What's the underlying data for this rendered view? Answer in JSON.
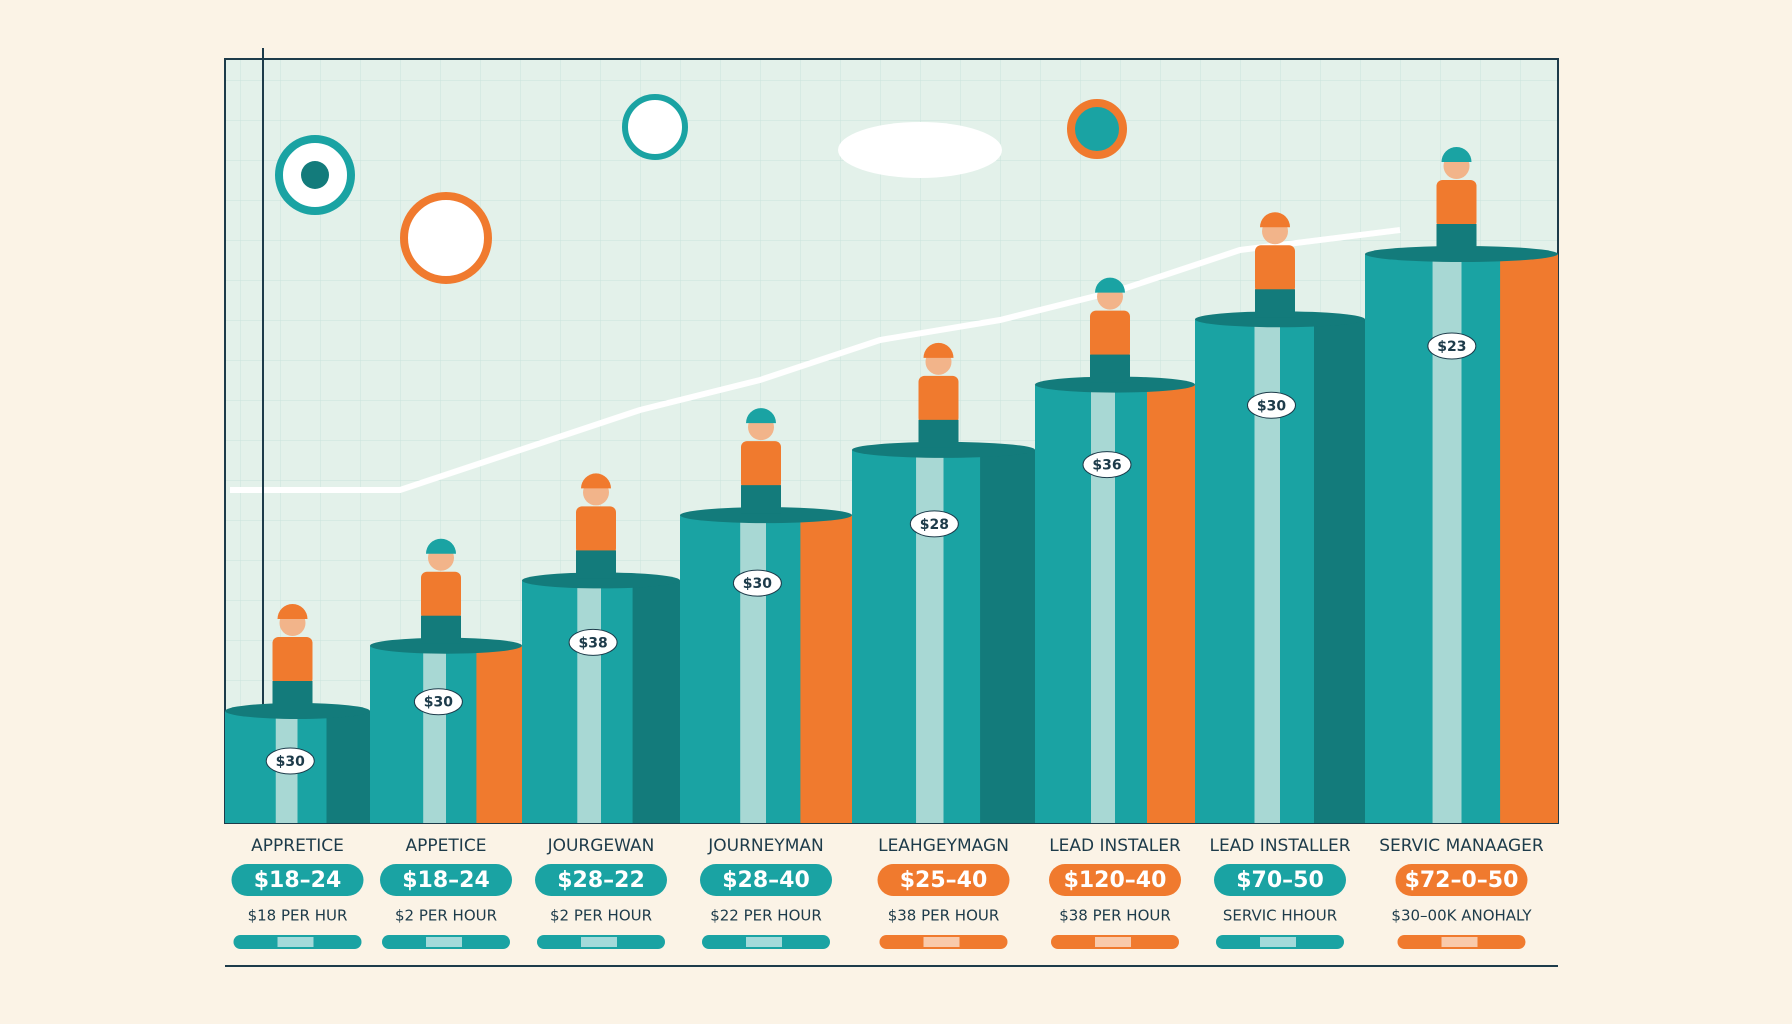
{
  "columns": [
    {
      "label": "APPRETICE",
      "range": "$18–24",
      "rate": "$18 PER HUR",
      "tag": "$30",
      "color": "#1aa3a3"
    },
    {
      "label": "APPETICE",
      "range": "$18–24",
      "rate": "$2 PER HOUR",
      "tag": "$30",
      "color": "#1aa3a3"
    },
    {
      "label": "JOURGEWAN",
      "range": "$28–22",
      "rate": "$2 PER HOUR",
      "tag": "$38",
      "color": "#1aa3a3"
    },
    {
      "label": "JOURNEYMAN",
      "range": "$28–40",
      "rate": "$22 PER HOUR",
      "tag": "$30",
      "color": "#1aa3a3"
    },
    {
      "label": "LEAHGEYMAGN",
      "range": "$25–40",
      "rate": "$38 PER HOUR",
      "tag": "$28",
      "color": "#f07a2e"
    },
    {
      "label": "LEAD INSTALER",
      "range": "$120–40",
      "rate": "$38 PER HOUR",
      "tag": "$36",
      "color": "#f07a2e"
    },
    {
      "label": "LEAD INSTALLER",
      "range": "$70–50",
      "rate": "SERVIC HHOUR",
      "tag": "$30",
      "color": "#1aa3a3"
    },
    {
      "label": "SERVIC MANAAGER",
      "range": "$72–0–50",
      "rate": "$30–00K ANOHALY",
      "tag": "$23",
      "color": "#f07a2e"
    }
  ]
}
